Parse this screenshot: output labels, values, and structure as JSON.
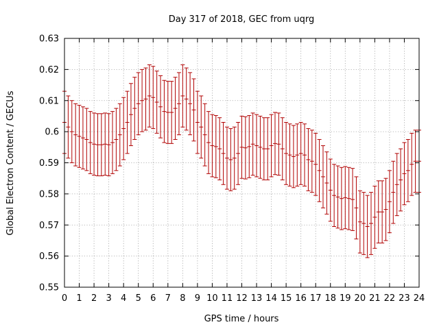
{
  "chart_data": {
    "type": "errorbar",
    "title": "Day 317 of 2018, GEC from uqrg",
    "xlabel": "GPS time / hours",
    "ylabel": "Global Electron Content / GECUs",
    "xlim": [
      0,
      24
    ],
    "ylim": [
      0.55,
      0.63
    ],
    "xticks": [
      0,
      1,
      2,
      3,
      4,
      5,
      6,
      7,
      8,
      9,
      10,
      11,
      12,
      13,
      14,
      15,
      16,
      17,
      18,
      19,
      20,
      21,
      22,
      23,
      24
    ],
    "yticks": [
      0.55,
      0.56,
      0.57,
      0.58,
      0.59,
      0.6,
      0.61,
      0.62,
      0.63
    ],
    "grid": true,
    "error": 0.01,
    "color": "#b00000",
    "x": [
      0,
      0.25,
      0.5,
      0.75,
      1,
      1.25,
      1.5,
      1.75,
      2,
      2.25,
      2.5,
      2.75,
      3,
      3.25,
      3.5,
      3.75,
      4,
      4.25,
      4.5,
      4.75,
      5,
      5.25,
      5.5,
      5.75,
      6,
      6.25,
      6.5,
      6.75,
      7,
      7.25,
      7.5,
      7.75,
      8,
      8.25,
      8.5,
      8.75,
      9,
      9.25,
      9.5,
      9.75,
      10,
      10.25,
      10.5,
      10.75,
      11,
      11.25,
      11.5,
      11.75,
      12,
      12.25,
      12.5,
      12.75,
      13,
      13.25,
      13.5,
      13.75,
      14,
      14.25,
      14.5,
      14.75,
      15,
      15.25,
      15.5,
      15.75,
      16,
      16.25,
      16.5,
      16.75,
      17,
      17.25,
      17.5,
      17.75,
      18,
      18.25,
      18.5,
      18.75,
      19,
      19.25,
      19.5,
      19.75,
      20,
      20.25,
      20.5,
      20.75,
      21,
      21.25,
      21.5,
      21.75,
      22,
      22.25,
      22.5,
      22.75,
      23,
      23.25,
      23.5,
      23.75,
      24
    ],
    "y": [
      0.603,
      0.6015,
      0.6,
      0.599,
      0.5985,
      0.598,
      0.5975,
      0.5965,
      0.596,
      0.5958,
      0.5958,
      0.596,
      0.5958,
      0.5965,
      0.5975,
      0.599,
      0.601,
      0.603,
      0.6055,
      0.6075,
      0.609,
      0.61,
      0.6105,
      0.6115,
      0.611,
      0.6095,
      0.608,
      0.6065,
      0.6062,
      0.6062,
      0.6075,
      0.609,
      0.6115,
      0.6105,
      0.609,
      0.607,
      0.603,
      0.6015,
      0.599,
      0.5965,
      0.5955,
      0.5952,
      0.5945,
      0.593,
      0.5915,
      0.591,
      0.5915,
      0.593,
      0.595,
      0.5948,
      0.5952,
      0.596,
      0.5955,
      0.595,
      0.5945,
      0.5945,
      0.5955,
      0.5962,
      0.596,
      0.5945,
      0.593,
      0.5925,
      0.592,
      0.5925,
      0.593,
      0.5925,
      0.591,
      0.5905,
      0.5895,
      0.5875,
      0.5855,
      0.5835,
      0.5812,
      0.5795,
      0.579,
      0.5785,
      0.5788,
      0.5785,
      0.5782,
      0.5755,
      0.571,
      0.5705,
      0.5695,
      0.5705,
      0.5725,
      0.5742,
      0.5742,
      0.575,
      0.5775,
      0.5805,
      0.583,
      0.5845,
      0.5865,
      0.5875,
      0.5895,
      0.5905,
      0.5905
    ]
  }
}
